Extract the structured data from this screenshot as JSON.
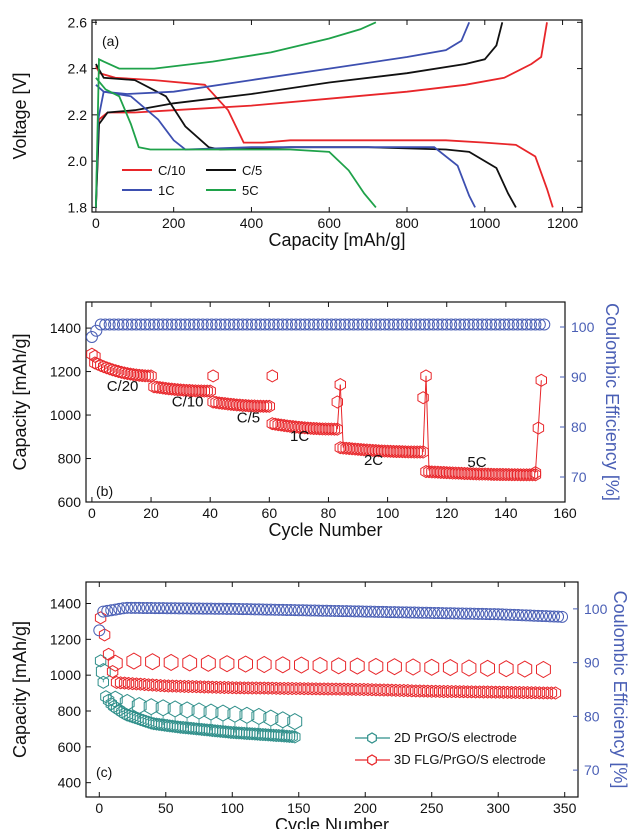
{
  "colors": {
    "red": "#e8262a",
    "black": "#111111",
    "blue": "#3d4fb0",
    "green": "#1fa24a",
    "teal": "#2f8f8a",
    "ce_blue": "#4a5fb5"
  },
  "chart_data": [
    {
      "type": "line",
      "panel_label": "(a)",
      "xlabel": "Capacity [mAh/g]",
      "ylabel": "Voltage [V]",
      "xlim": [
        -10,
        1250
      ],
      "ylim": [
        1.78,
        2.61
      ],
      "xticks": [
        0,
        200,
        400,
        600,
        800,
        1000,
        1200
      ],
      "yticks": [
        1.8,
        2.0,
        2.2,
        2.4,
        2.6
      ],
      "ytick_labels": [
        "1.8",
        "2.0",
        "2.2",
        "2.4",
        "2.6"
      ],
      "legend": {
        "placement": "bottom-left",
        "columns": 2
      },
      "series": [
        {
          "name": "C/10",
          "color_key": "red",
          "discharge": [
            [
              0,
              2.41
            ],
            [
              10,
              2.38
            ],
            [
              50,
              2.36
            ],
            [
              150,
              2.35
            ],
            [
              280,
              2.33
            ],
            [
              340,
              2.22
            ],
            [
              380,
              2.08
            ],
            [
              430,
              2.08
            ],
            [
              500,
              2.09
            ],
            [
              700,
              2.09
            ],
            [
              900,
              2.09
            ],
            [
              1000,
              2.08
            ],
            [
              1080,
              2.07
            ],
            [
              1130,
              2.02
            ],
            [
              1160,
              1.88
            ],
            [
              1175,
              1.8
            ]
          ],
          "charge": [
            [
              0,
              1.8
            ],
            [
              8,
              2.18
            ],
            [
              30,
              2.21
            ],
            [
              100,
              2.21
            ],
            [
              200,
              2.22
            ],
            [
              400,
              2.24
            ],
            [
              600,
              2.27
            ],
            [
              800,
              2.3
            ],
            [
              950,
              2.33
            ],
            [
              1050,
              2.36
            ],
            [
              1120,
              2.42
            ],
            [
              1145,
              2.45
            ],
            [
              1160,
              2.6
            ]
          ]
        },
        {
          "name": "C/5",
          "color_key": "black",
          "discharge": [
            [
              0,
              2.42
            ],
            [
              20,
              2.36
            ],
            [
              100,
              2.35
            ],
            [
              180,
              2.28
            ],
            [
              230,
              2.15
            ],
            [
              290,
              2.06
            ],
            [
              320,
              2.05
            ],
            [
              500,
              2.06
            ],
            [
              700,
              2.06
            ],
            [
              900,
              2.05
            ],
            [
              960,
              2.04
            ],
            [
              1030,
              1.97
            ],
            [
              1060,
              1.86
            ],
            [
              1080,
              1.8
            ]
          ],
          "charge": [
            [
              0,
              1.8
            ],
            [
              8,
              2.16
            ],
            [
              30,
              2.21
            ],
            [
              100,
              2.22
            ],
            [
              200,
              2.25
            ],
            [
              400,
              2.29
            ],
            [
              600,
              2.34
            ],
            [
              800,
              2.38
            ],
            [
              950,
              2.42
            ],
            [
              1000,
              2.44
            ],
            [
              1030,
              2.5
            ],
            [
              1045,
              2.6
            ]
          ]
        },
        {
          "name": "1C",
          "color_key": "blue",
          "discharge": [
            [
              0,
              2.33
            ],
            [
              20,
              2.3
            ],
            [
              90,
              2.28
            ],
            [
              160,
              2.18
            ],
            [
              200,
              2.09
            ],
            [
              230,
              2.05
            ],
            [
              400,
              2.06
            ],
            [
              600,
              2.06
            ],
            [
              800,
              2.06
            ],
            [
              870,
              2.06
            ],
            [
              930,
              1.98
            ],
            [
              960,
              1.85
            ],
            [
              975,
              1.8
            ]
          ],
          "charge": [
            [
              0,
              1.8
            ],
            [
              6,
              2.18
            ],
            [
              20,
              2.3
            ],
            [
              80,
              2.29
            ],
            [
              200,
              2.3
            ],
            [
              400,
              2.35
            ],
            [
              600,
              2.4
            ],
            [
              800,
              2.45
            ],
            [
              900,
              2.48
            ],
            [
              940,
              2.52
            ],
            [
              960,
              2.6
            ]
          ]
        },
        {
          "name": "5C",
          "color_key": "green",
          "discharge": [
            [
              0,
              2.36
            ],
            [
              25,
              2.31
            ],
            [
              60,
              2.28
            ],
            [
              90,
              2.16
            ],
            [
              110,
              2.06
            ],
            [
              140,
              2.05
            ],
            [
              300,
              2.05
            ],
            [
              500,
              2.05
            ],
            [
              600,
              2.04
            ],
            [
              650,
              1.96
            ],
            [
              690,
              1.86
            ],
            [
              720,
              1.8
            ]
          ],
          "charge": [
            [
              0,
              1.8
            ],
            [
              8,
              2.44
            ],
            [
              20,
              2.43
            ],
            [
              60,
              2.4
            ],
            [
              150,
              2.4
            ],
            [
              300,
              2.43
            ],
            [
              450,
              2.47
            ],
            [
              600,
              2.53
            ],
            [
              680,
              2.57
            ],
            [
              720,
              2.6
            ]
          ]
        }
      ]
    },
    {
      "type": "scatter",
      "panel_label": "(b)",
      "xlabel": "Cycle Number",
      "ylabel": "Capacity [mAh/g]",
      "y2label": "Coulombic Efficiency [%]",
      "xlim": [
        -2,
        160
      ],
      "ylim": [
        600,
        1520
      ],
      "y2lim": [
        65,
        105
      ],
      "xticks": [
        0,
        20,
        40,
        60,
        80,
        100,
        120,
        140,
        160
      ],
      "yticks": [
        600,
        800,
        1000,
        1200,
        1400
      ],
      "y2ticks": [
        70,
        80,
        90,
        100
      ],
      "annotations": [
        {
          "text": "C/20",
          "x": 5,
          "y": 1110
        },
        {
          "text": "C/10",
          "x": 27,
          "y": 1040
        },
        {
          "text": "C/5",
          "x": 49,
          "y": 965
        },
        {
          "text": "1C",
          "x": 67,
          "y": 880
        },
        {
          "text": "2C",
          "x": 92,
          "y": 770
        },
        {
          "text": "5C",
          "x": 127,
          "y": 760
        }
      ],
      "rate_segments": [
        {
          "cycles": [
            1,
            20
          ],
          "start": 1240,
          "end": 1180
        },
        {
          "cycles": [
            21,
            40
          ],
          "start": 1130,
          "end": 1110
        },
        {
          "cycles": [
            41,
            60
          ],
          "start": 1060,
          "end": 1040
        },
        {
          "cycles": [
            61,
            83
          ],
          "start": 960,
          "end": 935
        },
        {
          "cycles": [
            84,
            112
          ],
          "start": 850,
          "end": 830
        },
        {
          "cycles": [
            113,
            150
          ],
          "start": 740,
          "end": 725
        }
      ],
      "capacity_spikes": [
        [
          0,
          1280
        ],
        [
          1,
          1270
        ],
        [
          41,
          1180
        ],
        [
          61,
          1180
        ],
        [
          83,
          1060
        ],
        [
          84,
          1140
        ],
        [
          112,
          1080
        ],
        [
          113,
          1180
        ],
        [
          150,
          735
        ],
        [
          151,
          940
        ],
        [
          152,
          1160
        ]
      ],
      "efficiency": {
        "cycles": [
          0,
          153
        ],
        "start": 98,
        "level": 100.5,
        "end": 99.5
      },
      "marker": "circle"
    },
    {
      "type": "scatter",
      "panel_label": "(c)",
      "xlabel": "Cycle Number",
      "ylabel": "Capacity [mAh/g]",
      "y2label": "Coulombic Efficiency [%]",
      "xlim": [
        -10,
        360
      ],
      "ylim": [
        320,
        1520
      ],
      "y2lim": [
        65,
        105
      ],
      "xticks": [
        0,
        50,
        100,
        150,
        200,
        250,
        300,
        350
      ],
      "yticks": [
        400,
        600,
        800,
        1000,
        1200,
        1400
      ],
      "y2ticks": [
        70,
        80,
        90,
        100
      ],
      "legend": {
        "placement": "bottom-right"
      },
      "series": [
        {
          "name": "2D PrGO/S electrode",
          "color_key": "teal",
          "marker": "hexagon",
          "lower": [
            [
              1,
              1080
            ],
            [
              3,
              960
            ],
            [
              5,
              880
            ],
            [
              10,
              830
            ],
            [
              20,
              780
            ],
            [
              40,
              730
            ],
            [
              60,
              710
            ],
            [
              80,
              695
            ],
            [
              100,
              680
            ],
            [
              120,
              670
            ],
            [
              140,
              660
            ],
            [
              148,
              655
            ]
          ],
          "upper": [
            [
              1,
              1100
            ],
            [
              3,
              1020
            ],
            [
              10,
              870
            ],
            [
              30,
              830
            ],
            [
              60,
              810
            ],
            [
              90,
              790
            ],
            [
              120,
              770
            ],
            [
              148,
              740
            ]
          ]
        },
        {
          "name": "3D FLG/PrGO/S electrode",
          "color_key": "red",
          "marker": "hexagon",
          "lower": [
            [
              1,
              1320
            ],
            [
              3,
              1260
            ],
            [
              5,
              1190
            ],
            [
              8,
              1080
            ],
            [
              12,
              960
            ],
            [
              20,
              955
            ],
            [
              50,
              940
            ],
            [
              100,
              930
            ],
            [
              150,
              925
            ],
            [
              200,
              920
            ],
            [
              250,
              910
            ],
            [
              300,
              905
            ],
            [
              345,
              900
            ]
          ],
          "upper": [
            [
              8,
              1060
            ],
            [
              20,
              1080
            ],
            [
              60,
              1070
            ],
            [
              120,
              1060
            ],
            [
              200,
              1050
            ],
            [
              280,
              1040
            ],
            [
              345,
              1030
            ]
          ],
          "hollow_points": [
            [
              12,
              1080
            ],
            [
              38,
              1080
            ],
            [
              60,
              1070
            ],
            [
              75,
              1070
            ]
          ]
        },
        {
          "name": "Coulombic efficiency",
          "color_key": "ce_blue",
          "marker": "circle",
          "ce": [
            [
              0,
              96
            ],
            [
              3,
              99.5
            ],
            [
              20,
              100.2
            ],
            [
              100,
              100
            ],
            [
              200,
              99.5
            ],
            [
              300,
              99
            ],
            [
              350,
              98.5
            ]
          ]
        }
      ]
    }
  ]
}
